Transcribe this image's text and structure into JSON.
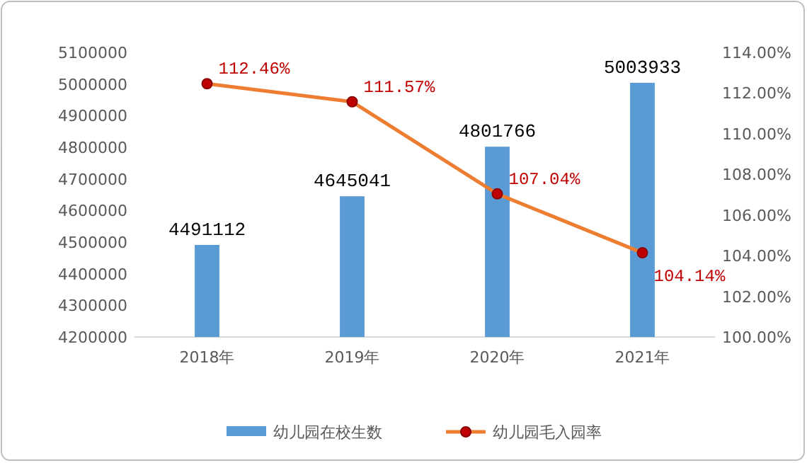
{
  "chart_data": {
    "type": "bar",
    "categories": [
      "2018年",
      "2019年",
      "2020年",
      "2021年"
    ],
    "series": [
      {
        "name": "幼儿园在校生数",
        "color": "#5b9bd5",
        "values": [
          4491112,
          4645041,
          4801766,
          5003933
        ],
        "value_labels": [
          "4491112",
          "4645041",
          "4801766",
          "5003933"
        ]
      },
      {
        "name": "幼儿园毛入园率",
        "type": "line",
        "axis": "y2",
        "color": "#ed7d31",
        "marker": "circle",
        "values": [
          112.46,
          111.57,
          107.04,
          104.14
        ],
        "value_labels": [
          "112.46%",
          "111.57%",
          "107.04%",
          "104.14%"
        ]
      }
    ],
    "ylim": [
      4200000,
      5100000
    ],
    "yticks": [
      4200000,
      4300000,
      4400000,
      4500000,
      4600000,
      4700000,
      4800000,
      4900000,
      5000000,
      5100000
    ],
    "y2lim": [
      100,
      114
    ],
    "y2ticks": [
      {
        "value": 100,
        "label": "100.00%"
      },
      {
        "value": 102,
        "label": "102.00%"
      },
      {
        "value": 104,
        "label": "104.00%"
      },
      {
        "value": 106,
        "label": "106.00%"
      },
      {
        "value": 108,
        "label": "108.00%"
      },
      {
        "value": 110,
        "label": "110.00%"
      },
      {
        "value": 112,
        "label": "112.00%"
      },
      {
        "value": 114,
        "label": "114.00%"
      }
    ],
    "legend": "bottom"
  }
}
